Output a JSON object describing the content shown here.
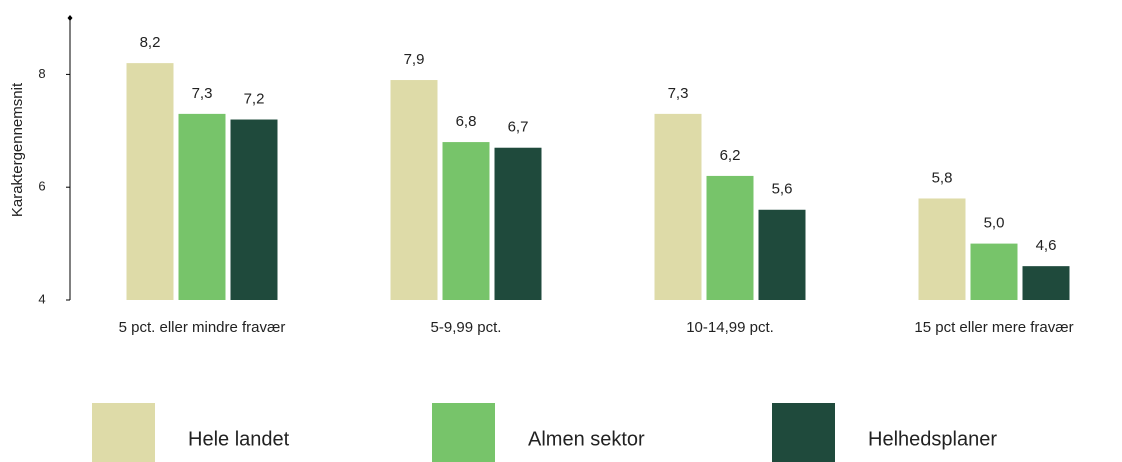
{
  "chart_data": {
    "type": "bar",
    "y_label": "Karaktergennemsnit",
    "categories": [
      "5 pct. eller mindre fravær",
      "5-9,99 pct.",
      "10-14,99 pct.",
      "15 pct eller mere fravær"
    ],
    "series": [
      {
        "name": "Hele landet",
        "color": "#dedba8",
        "values": [
          8.2,
          7.9,
          7.3,
          5.8
        ],
        "value_labels": [
          "8,2",
          "7,9",
          "7,3",
          "5,8"
        ]
      },
      {
        "name": "Almen sektor",
        "color": "#77c46a",
        "values": [
          7.3,
          6.8,
          6.2,
          5.0
        ],
        "value_labels": [
          "7,3",
          "6,8",
          "6,2",
          "5,0"
        ]
      },
      {
        "name": "Helhedsplaner",
        "color": "#1f4a3c",
        "values": [
          7.2,
          6.7,
          5.6,
          4.6
        ],
        "value_labels": [
          "7,2",
          "6,7",
          "5,6",
          "4,6"
        ]
      }
    ],
    "ylim": [
      4,
      9
    ],
    "yticks": [
      4,
      6,
      8
    ],
    "legend": "bottom"
  }
}
